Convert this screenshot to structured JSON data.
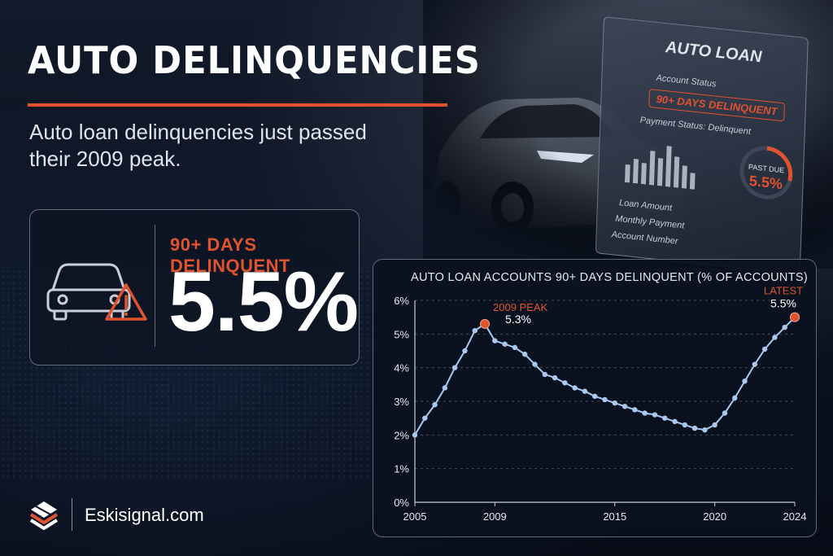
{
  "header": {
    "title": "AUTO DELINQUENCIES",
    "subtitle": "Auto loan delinquencies just passed their 2009 peak."
  },
  "stat": {
    "label": "90+ DAYS DELINQUENT",
    "value": "5.5%"
  },
  "document": {
    "title": "AUTO LOAN",
    "account_status_label": "Account Status",
    "badge": "90+ DAYS DELINQUENT",
    "payment_status": "Payment Status: Delinquent",
    "past_due_label": "PAST DUE",
    "past_due_value": "5.5%",
    "fields": [
      "Loan Amount",
      "Monthly Payment",
      "Account Number"
    ]
  },
  "footer": {
    "brand": "Eskisignal.com"
  },
  "colors": {
    "accent": "#e0532e",
    "line": "#a9c8ee",
    "background": "#0b1220"
  },
  "chart_data": {
    "type": "line",
    "title": "AUTO LOAN ACCOUNTS 90+ DAYS DELINQUENT (% OF ACCOUNTS)",
    "xlabel": "",
    "ylabel": "",
    "xlim": [
      2005,
      2024
    ],
    "ylim": [
      0,
      6
    ],
    "x_ticks": [
      2005,
      2009,
      2015,
      2020,
      2024
    ],
    "y_ticks": [
      0,
      1,
      2,
      3,
      4,
      5,
      6
    ],
    "y_tick_labels": [
      "0%",
      "1%",
      "2%",
      "3%",
      "4%",
      "5%",
      "6%"
    ],
    "grid": "horizontal dashed",
    "series": [
      {
        "x": [
          2005,
          2005.5,
          2006,
          2006.5,
          2007,
          2007.5,
          2008,
          2008.5,
          2009,
          2009.5,
          2010,
          2010.5,
          2011,
          2011.5,
          2012,
          2012.5,
          2013,
          2013.5,
          2014,
          2014.5,
          2015,
          2015.5,
          2016,
          2016.5,
          2017,
          2017.5,
          2018,
          2018.5,
          2019,
          2019.5,
          2020,
          2020.5,
          2021,
          2021.5,
          2022,
          2022.5,
          2023,
          2023.5,
          2024
        ],
        "y": [
          2.0,
          2.5,
          2.9,
          3.4,
          4.0,
          4.5,
          5.1,
          5.3,
          4.8,
          4.7,
          4.6,
          4.4,
          4.1,
          3.8,
          3.7,
          3.55,
          3.4,
          3.3,
          3.15,
          3.05,
          2.95,
          2.85,
          2.75,
          2.65,
          2.6,
          2.5,
          2.4,
          2.3,
          2.2,
          2.15,
          2.3,
          2.65,
          3.1,
          3.6,
          4.1,
          4.55,
          4.9,
          5.2,
          5.5
        ]
      }
    ],
    "annotations": [
      {
        "label": "2009 PEAK",
        "value_text": "5.3%",
        "x": 2008.5,
        "y": 5.3
      },
      {
        "label": "LATEST",
        "value_text": "5.5%",
        "x": 2024,
        "y": 5.5
      }
    ]
  }
}
